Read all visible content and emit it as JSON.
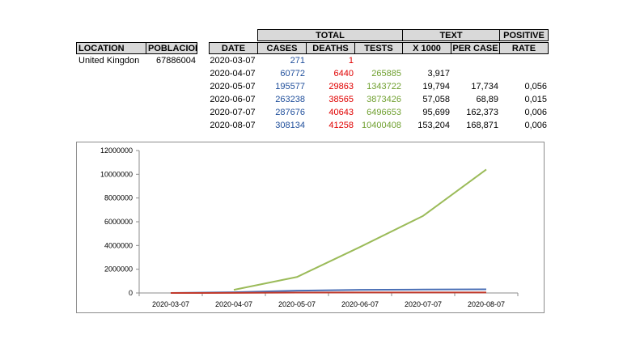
{
  "location_table": {
    "headers": {
      "location": "LOCATION",
      "poblacion": "POBLACION"
    },
    "row": {
      "location": "United Kingdon",
      "poblacion": "67886004"
    }
  },
  "data_table": {
    "group_headers": {
      "total": "TOTAL",
      "text": "TEXT",
      "positive": "POSITIVE"
    },
    "headers": {
      "date": "DATE",
      "cases": "CASES",
      "deaths": "DEATHS",
      "tests": "TESTS",
      "x1000": "X 1000",
      "per_case": "PER CASE",
      "rate": "RATE"
    },
    "rows": [
      {
        "date": "2020-03-07",
        "cases": "271",
        "deaths": "1",
        "tests": "",
        "x1000": "",
        "per_case": "",
        "rate": ""
      },
      {
        "date": "2020-04-07",
        "cases": "60772",
        "deaths": "6440",
        "tests": "265885",
        "x1000": "3,917",
        "per_case": "",
        "rate": ""
      },
      {
        "date": "2020-05-07",
        "cases": "195577",
        "deaths": "29863",
        "tests": "1343722",
        "x1000": "19,794",
        "per_case": "17,734",
        "rate": "0,056"
      },
      {
        "date": "2020-06-07",
        "cases": "263238",
        "deaths": "38565",
        "tests": "3873426",
        "x1000": "57,058",
        "per_case": "68,89",
        "rate": "0,015"
      },
      {
        "date": "2020-07-07",
        "cases": "287676",
        "deaths": "40643",
        "tests": "6496653",
        "x1000": "95,699",
        "per_case": "162,373",
        "rate": "0,006"
      },
      {
        "date": "2020-08-07",
        "cases": "308134",
        "deaths": "41258",
        "tests": "10400408",
        "x1000": "153,204",
        "per_case": "168,871",
        "rate": "0,006"
      }
    ]
  },
  "colors": {
    "cases": "#4a6fb5",
    "deaths": "#c0392b",
    "tests": "#9bbb59",
    "header_bg": "#d9d9d9"
  },
  "chart_data": {
    "type": "line",
    "categories": [
      "2020-03-07",
      "2020-04-07",
      "2020-05-07",
      "2020-06-07",
      "2020-07-07",
      "2020-08-07"
    ],
    "series": [
      {
        "values": [
          271,
          60772,
          195577,
          263238,
          287676,
          308134
        ],
        "color": "#4a6fb5"
      },
      {
        "values": [
          1,
          6440,
          29863,
          38565,
          40643,
          41258
        ],
        "color": "#c0392b"
      },
      {
        "values": [
          null,
          265885,
          1343722,
          3873426,
          6496653,
          10400408
        ],
        "color": "#9bbb59"
      }
    ],
    "yticks": [
      "0",
      "2000000",
      "4000000",
      "6000000",
      "8000000",
      "10000000",
      "12000000"
    ],
    "ylim": [
      0,
      12000000
    ],
    "grid": true,
    "legend": "none"
  }
}
